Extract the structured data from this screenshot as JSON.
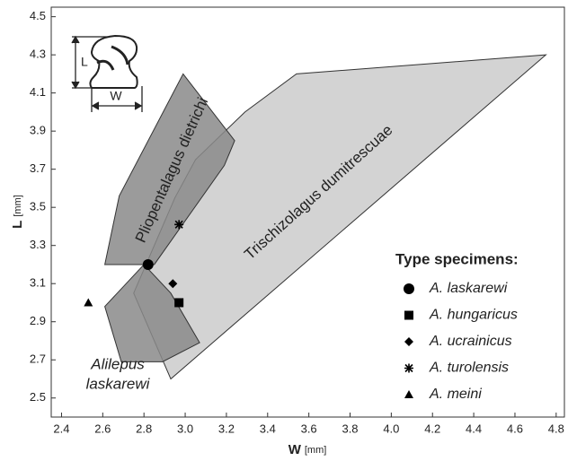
{
  "chart_data": {
    "type": "scatter",
    "x_label": "W",
    "x_label_unit": "[mm]",
    "y_label": "L",
    "y_label_unit": "[mm]",
    "xlim": [
      2.35,
      4.84
    ],
    "ylim": [
      2.4,
      4.55
    ],
    "xticks": [
      2.4,
      2.6,
      2.8,
      {
        "value": 3,
        "label": "3.0"
      },
      3.2,
      3.4,
      3.6,
      3.8,
      {
        "value": 4,
        "label": "4.0"
      },
      4.2,
      4.4,
      4.6,
      4.8
    ],
    "yticks": [
      2.5,
      2.7,
      2.9,
      3.1,
      3.3,
      3.5,
      3.7,
      3.9,
      4.1,
      4.3,
      4.5
    ],
    "inset_labels": [
      "L",
      "W"
    ],
    "regions": [
      {
        "label_lines": [
          "Trischizolagus dumitrescuae"
        ],
        "color": "#d3d3d3",
        "x": [
          2.93,
          2.75,
          2.95,
          3.05,
          3.29,
          3.54,
          4.75
        ],
        "y": [
          2.6,
          3.05,
          3.55,
          3.75,
          4.0,
          4.2,
          4.3
        ]
      },
      {
        "label_lines": [
          "Pliopentalagus dietrichi"
        ],
        "color": "#8a8a8a",
        "x": [
          2.61,
          2.68,
          2.99,
          3.24,
          3.19,
          2.85
        ],
        "y": [
          3.2,
          3.56,
          4.2,
          3.85,
          3.72,
          3.2
        ]
      },
      {
        "label_lines": [
          "Alilepus",
          "laskarewi"
        ],
        "color": "#8a8a8a",
        "x": [
          2.61,
          2.8,
          2.93,
          3.07,
          2.89,
          2.69
        ],
        "y": [
          2.98,
          3.2,
          3.05,
          2.79,
          2.69,
          2.69
        ]
      }
    ],
    "legend_title": "Type specimens:",
    "legend_position": "lower right",
    "series": [
      {
        "name": "A. laskarewi",
        "marker": "circle",
        "color": "#000000",
        "x": [
          2.82
        ],
        "values": [
          3.2
        ]
      },
      {
        "name": "A. hungaricus",
        "marker": "square",
        "color": "#000000",
        "x": [
          2.97
        ],
        "values": [
          3.0
        ]
      },
      {
        "name": "A. ucrainicus",
        "marker": "diamond",
        "color": "#000000",
        "x": [
          2.94
        ],
        "values": [
          3.1
        ]
      },
      {
        "name": "A. turolensis",
        "marker": "asterisk",
        "color": "#000000",
        "x": [
          2.97
        ],
        "values": [
          3.41
        ]
      },
      {
        "name": "A. meini",
        "marker": "triangle",
        "color": "#000000",
        "x": [
          2.53
        ],
        "values": [
          3.0
        ]
      }
    ]
  }
}
